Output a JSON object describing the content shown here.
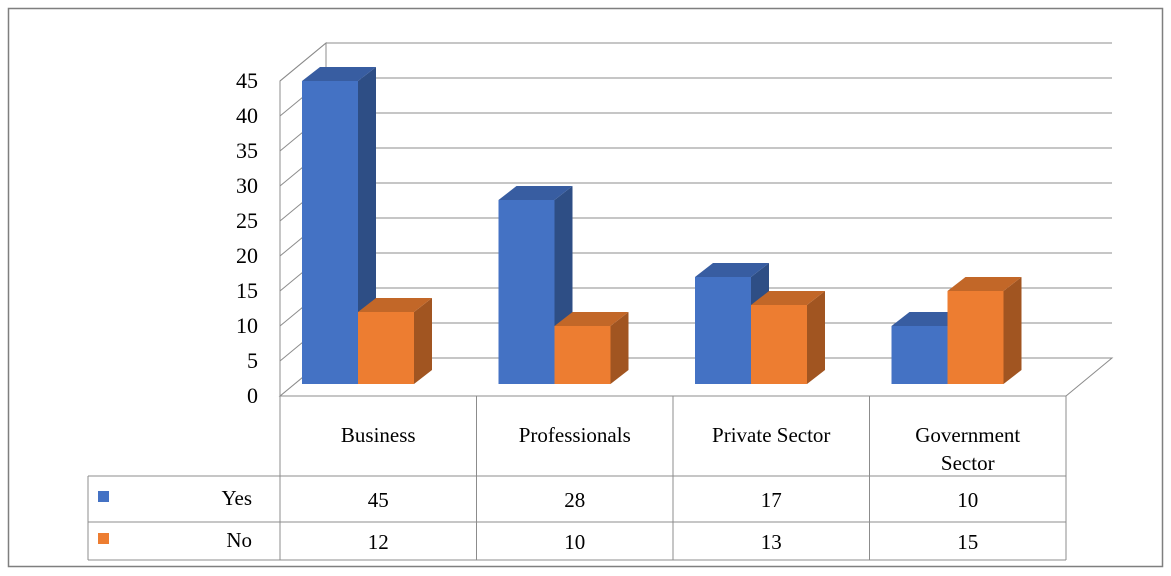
{
  "chart_data": {
    "type": "bar",
    "title": "",
    "xlabel": "",
    "ylabel": "",
    "categories": [
      "Business",
      "Professionals",
      "Private Sector",
      "Government Sector"
    ],
    "series": [
      {
        "name": "Yes",
        "values": [
          45,
          28,
          17,
          10
        ],
        "color": "#4472C4"
      },
      {
        "name": "No",
        "values": [
          12,
          10,
          13,
          15
        ],
        "color": "#ED7D31"
      }
    ],
    "yticks": [
      0,
      5,
      10,
      15,
      20,
      25,
      30,
      35,
      40,
      45
    ],
    "ylim": [
      0,
      45
    ],
    "grid": true,
    "legend": "data-table",
    "style": "3d-clustered-column"
  }
}
